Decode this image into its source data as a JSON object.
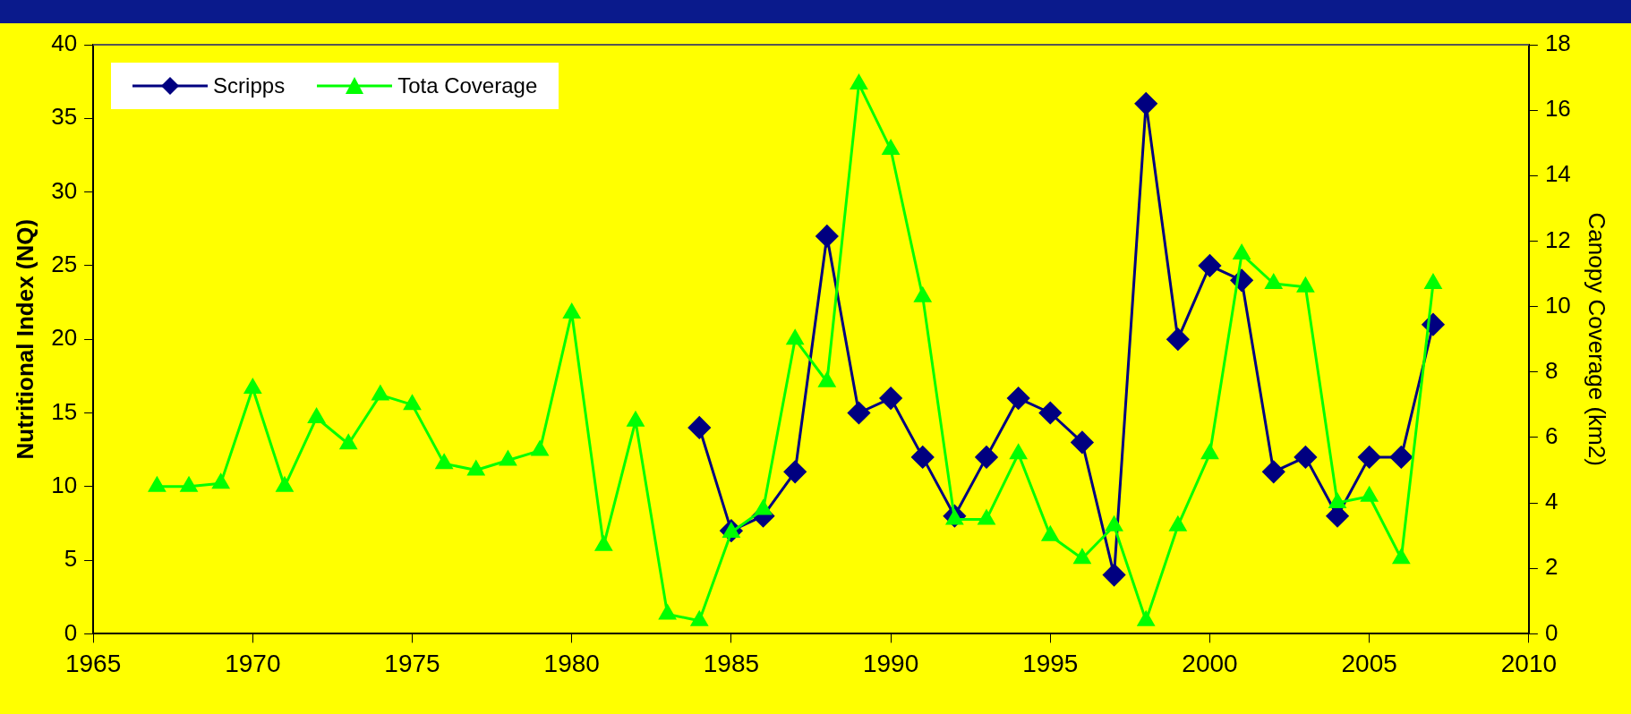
{
  "chart_data": {
    "type": "line",
    "xlabel": null,
    "ylabel": "Nutritional Index (NQ)",
    "y2label": "Canopy Coverage (km2)",
    "xlim": [
      1965,
      2010
    ],
    "xticks": [
      1965,
      1970,
      1975,
      1980,
      1985,
      1990,
      1995,
      2000,
      2005,
      2010
    ],
    "ylim": [
      0,
      40
    ],
    "yticks": [
      0,
      5,
      10,
      15,
      20,
      25,
      30,
      35,
      40
    ],
    "y2lim": [
      0,
      18
    ],
    "y2ticks": [
      0,
      2,
      4,
      6,
      8,
      10,
      12,
      14,
      16,
      18
    ],
    "legend": "top left",
    "grid": false,
    "line_style": "solid",
    "series": [
      {
        "name": "Scripps",
        "color": "#000080",
        "marker": "diamond",
        "x": [
          1984,
          1985,
          1986,
          1987,
          1988,
          1989,
          1990,
          1991,
          1992,
          1993,
          1994,
          1995,
          1996,
          1997,
          1998,
          1999,
          2000,
          2001,
          2002,
          2003,
          2004,
          2005,
          2006,
          2007
        ],
        "values": [
          14,
          7,
          8,
          11,
          27,
          15,
          16,
          12,
          8,
          12,
          16,
          15,
          13,
          4,
          36,
          20,
          25,
          24,
          11,
          12,
          8,
          12,
          12,
          21
        ]
      },
      {
        "name": "Tota Coverage",
        "color": "#00ff00",
        "marker": "triangle",
        "axis": "y2",
        "x": [
          1967,
          1968,
          1969,
          1970,
          1971,
          1972,
          1973,
          1974,
          1975,
          1976,
          1977,
          1978,
          1979,
          1980,
          1981,
          1982,
          1983,
          1984,
          1985,
          1986,
          1987,
          1988,
          1989,
          1990,
          1991,
          1992,
          1993,
          1994,
          1995,
          1996,
          1997,
          1998,
          1999,
          2000,
          2001,
          2002,
          2003,
          2004,
          2005,
          2006,
          2007
        ],
        "values": [
          4.5,
          4.5,
          4.6,
          7.5,
          4.5,
          6.6,
          5.8,
          7.3,
          7.0,
          5.2,
          5.0,
          5.3,
          5.6,
          9.8,
          2.7,
          6.5,
          0.6,
          0.4,
          3.1,
          3.8,
          9.0,
          7.7,
          16.8,
          14.8,
          10.3,
          3.5,
          3.5,
          5.5,
          3.0,
          2.3,
          3.3,
          0.4,
          3.3,
          5.5,
          11.6,
          10.7,
          10.6,
          4.0,
          4.2,
          2.3,
          10.7
        ]
      }
    ]
  }
}
